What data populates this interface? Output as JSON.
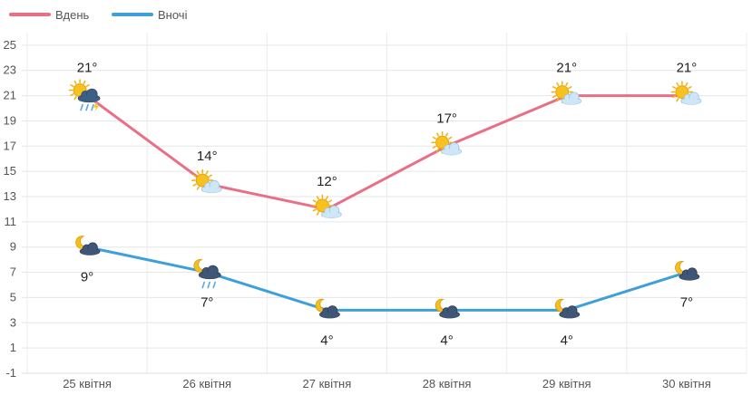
{
  "chart_data": {
    "type": "line",
    "categories": [
      "25 квітня",
      "26 квітня",
      "27 квітня",
      "28 квітня",
      "29 квітня",
      "30 квітня"
    ],
    "series": [
      {
        "name": "Вдень",
        "color": "#e96f86",
        "values": [
          21,
          14,
          12,
          17,
          21,
          21
        ],
        "labels": [
          "21°",
          "14°",
          "12°",
          "17°",
          "21°",
          "21°"
        ],
        "icons": [
          "sun-cloud-thunder-rain-icon",
          "sun-cloud-icon",
          "sun-cloud-icon",
          "sun-cloud-icon",
          "sun-cloud-icon",
          "sun-cloud-icon"
        ]
      },
      {
        "name": "Вночі",
        "color": "#3e9fdb",
        "values": [
          9,
          7,
          4,
          4,
          4,
          7
        ],
        "labels": [
          "9°",
          "7°",
          "4°",
          "4°",
          "4°",
          "7°"
        ],
        "icons": [
          "moon-dark-cloud-icon",
          "moon-cloud-rain-icon",
          "moon-dark-cloud-icon",
          "moon-dark-cloud-icon",
          "moon-dark-cloud-icon",
          "moon-dark-cloud-icon"
        ]
      }
    ],
    "yticks": [
      -1,
      1,
      3,
      5,
      7,
      9,
      11,
      13,
      15,
      17,
      19,
      21,
      23,
      25
    ],
    "ylim": [
      -1,
      26
    ],
    "grid": true,
    "legend": "top-left",
    "title": "",
    "xlabel": "",
    "ylabel": ""
  }
}
